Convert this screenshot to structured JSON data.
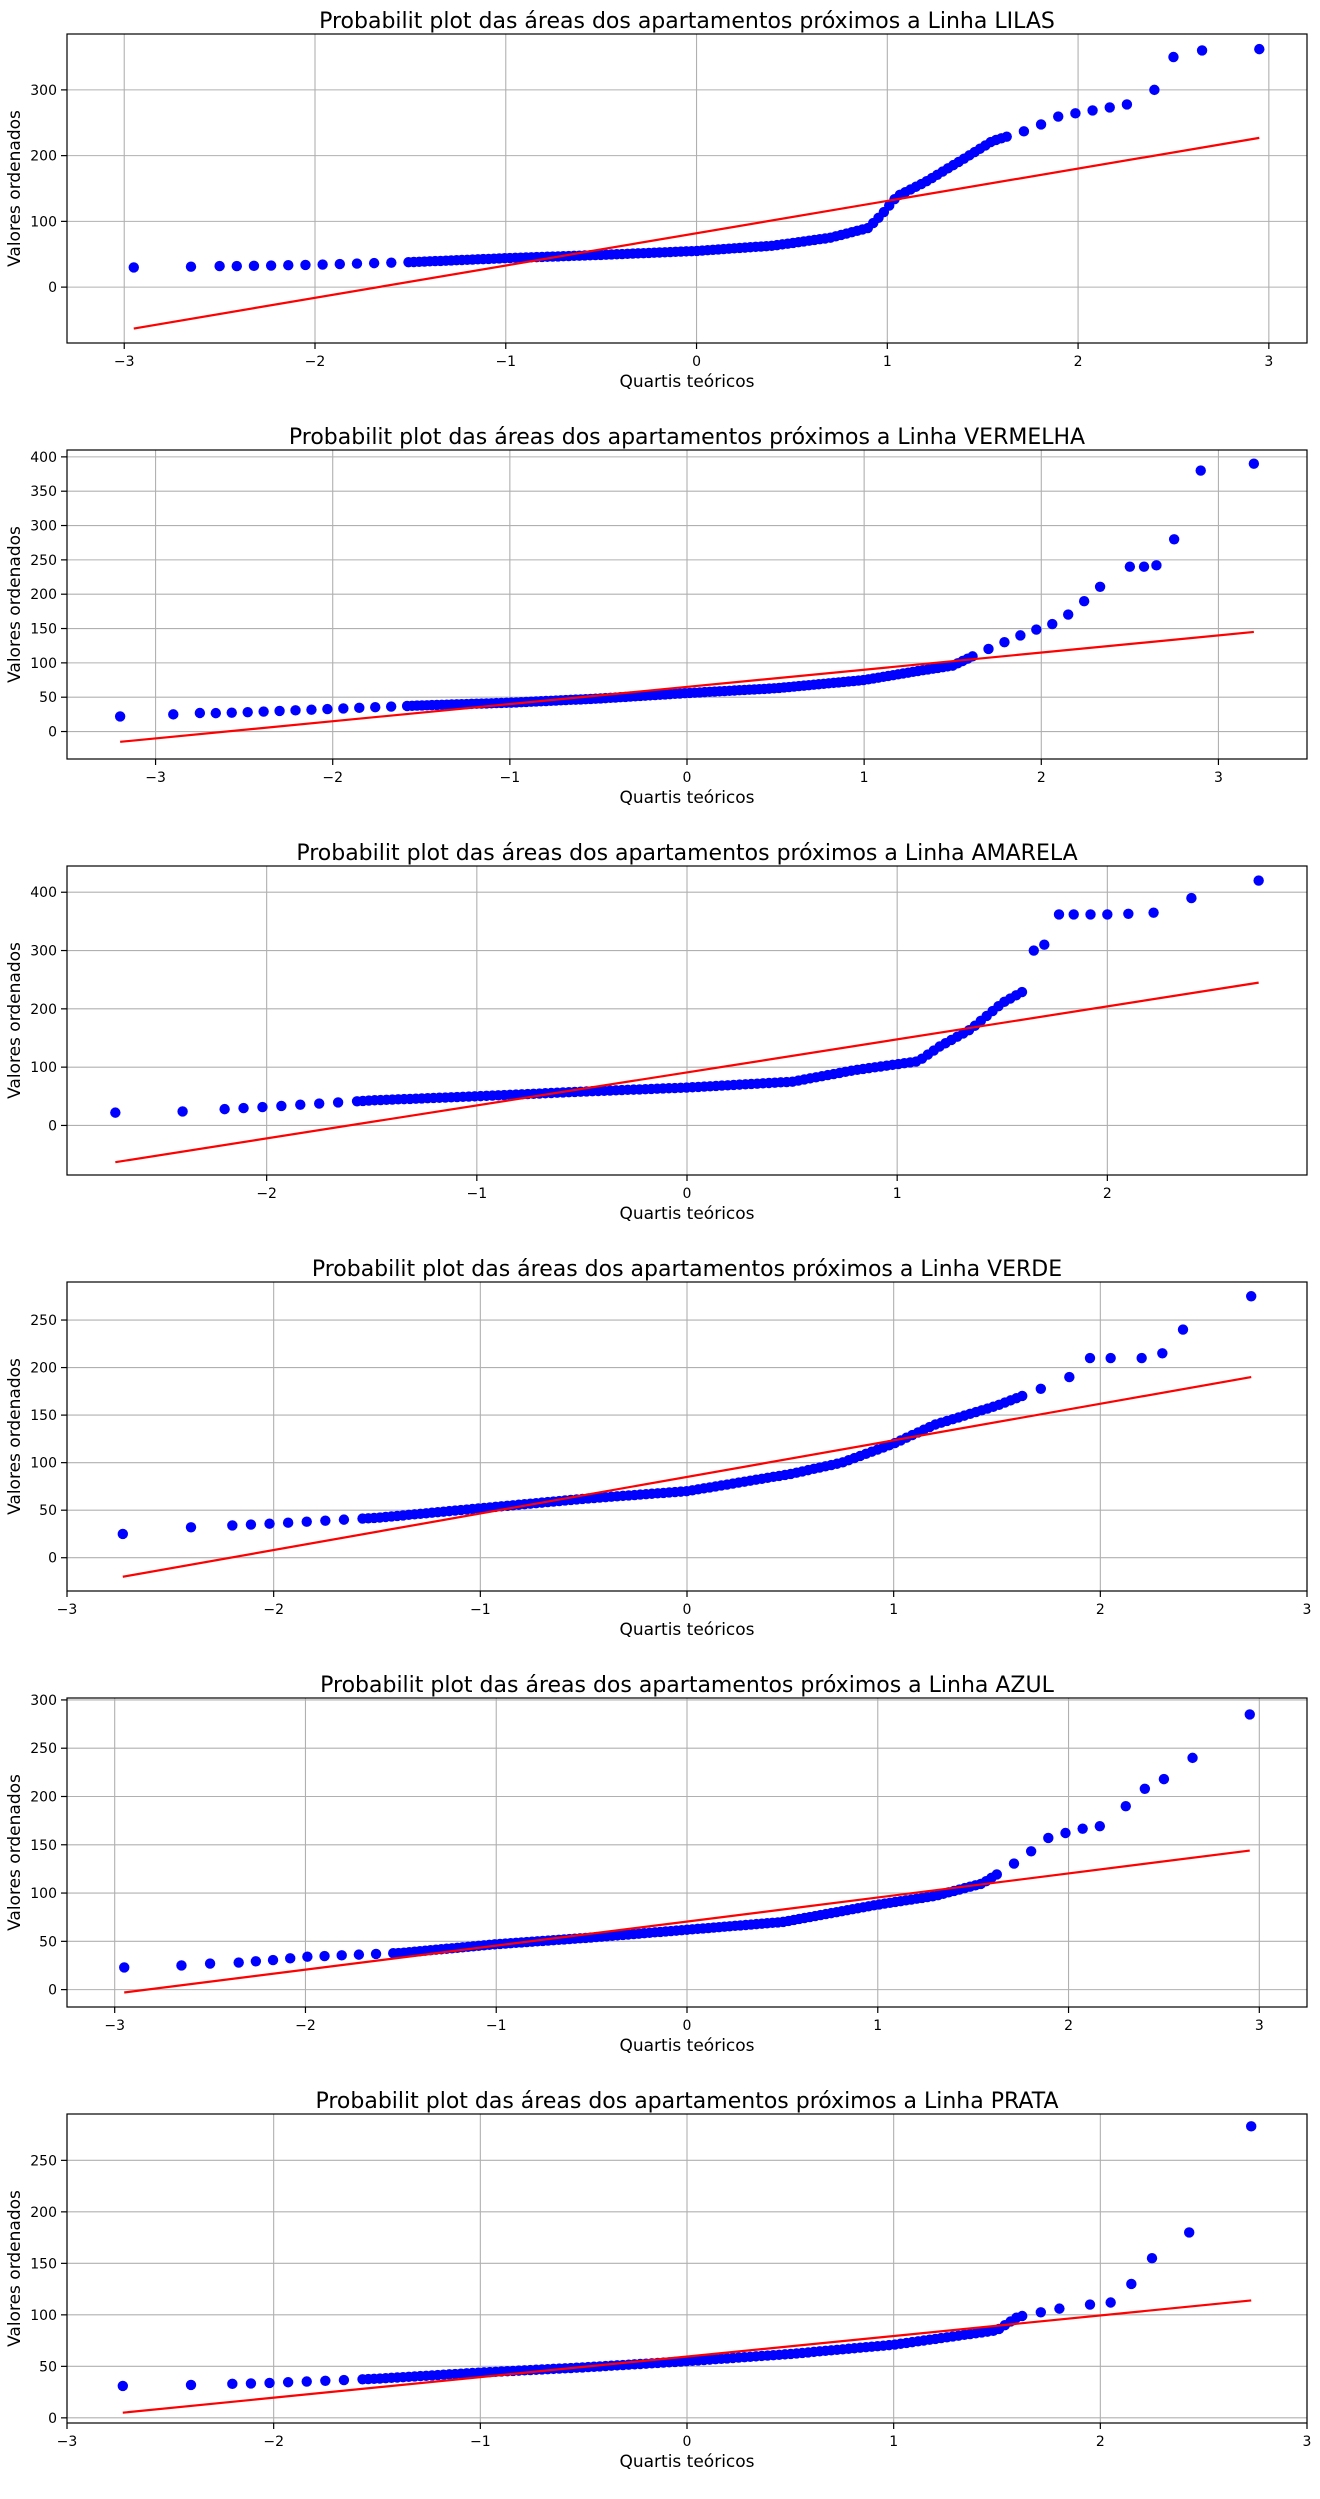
{
  "chart_data": [
    {
      "type": "scatter",
      "title": "Probabilit plot das áreas dos apartamentos próximos a Linha LILAS",
      "xlabel": "Quartis teóricos",
      "ylabel": "Valores ordenados",
      "xlim": [
        -3.3,
        3.2
      ],
      "ylim": [
        -85,
        385
      ],
      "xticks": [
        -3,
        -2,
        -1,
        0,
        1,
        2,
        3
      ],
      "yticks": [
        0,
        100,
        200,
        300
      ],
      "grid": true,
      "fit_line": {
        "x": [
          -2.95,
          2.95
        ],
        "y": [
          -63,
          227
        ]
      },
      "knots": [
        [
          -2.95,
          30
        ],
        [
          -2.65,
          31
        ],
        [
          -2.4,
          32
        ],
        [
          -2.0,
          34
        ],
        [
          -1.5,
          38
        ],
        [
          -1.0,
          44
        ],
        [
          -0.5,
          49
        ],
        [
          0.0,
          55
        ],
        [
          0.4,
          63
        ],
        [
          0.7,
          75
        ],
        [
          0.9,
          90
        ],
        [
          0.97,
          110
        ],
        [
          1.05,
          138
        ],
        [
          1.2,
          160
        ],
        [
          1.4,
          195
        ],
        [
          1.55,
          222
        ],
        [
          1.75,
          240
        ],
        [
          1.9,
          260
        ],
        [
          2.1,
          270
        ],
        [
          2.3,
          280
        ],
        [
          2.4,
          300
        ],
        [
          2.5,
          350
        ],
        [
          2.65,
          360
        ],
        [
          2.95,
          362
        ]
      ],
      "tail": [
        [
          -2.95,
          30
        ],
        [
          -2.65,
          31
        ],
        [
          -2.5,
          32
        ],
        [
          2.4,
          300
        ],
        [
          2.5,
          350
        ],
        [
          2.65,
          360
        ],
        [
          2.95,
          362
        ]
      ]
    },
    {
      "type": "scatter",
      "title": "Probabilit plot das áreas dos apartamentos próximos a Linha VERMELHA",
      "xlabel": "Quartis teóricos",
      "ylabel": "Valores ordenados",
      "xlim": [
        -3.5,
        3.5
      ],
      "ylim": [
        -40,
        410
      ],
      "xticks": [
        -3,
        -2,
        -1,
        0,
        1,
        2,
        3
      ],
      "yticks": [
        0,
        50,
        100,
        150,
        200,
        250,
        300,
        350,
        400
      ],
      "grid": true,
      "fit_line": {
        "x": [
          -3.2,
          3.2
        ],
        "y": [
          -15,
          145
        ]
      },
      "knots": [
        [
          -3.2,
          22
        ],
        [
          -2.9,
          25
        ],
        [
          -2.5,
          28
        ],
        [
          -2.0,
          33
        ],
        [
          -1.5,
          38
        ],
        [
          -1.0,
          42
        ],
        [
          -0.5,
          48
        ],
        [
          0.0,
          56
        ],
        [
          0.5,
          63
        ],
        [
          1.0,
          75
        ],
        [
          1.3,
          88
        ],
        [
          1.5,
          96
        ],
        [
          1.7,
          120
        ],
        [
          1.9,
          142
        ],
        [
          2.1,
          160
        ],
        [
          2.2,
          180
        ],
        [
          2.35,
          215
        ],
        [
          2.5,
          240
        ],
        [
          2.65,
          242
        ],
        [
          2.75,
          280
        ],
        [
          2.9,
          380
        ],
        [
          3.2,
          390
        ]
      ],
      "tail": [
        [
          -3.2,
          22
        ],
        [
          -2.9,
          25
        ],
        [
          -2.75,
          27
        ],
        [
          2.5,
          240
        ],
        [
          2.58,
          240
        ],
        [
          2.65,
          242
        ],
        [
          2.75,
          280
        ],
        [
          2.9,
          380
        ],
        [
          3.2,
          390
        ]
      ]
    },
    {
      "type": "scatter",
      "title": "Probabilit plot das áreas dos apartamentos próximos a Linha AMARELA",
      "xlabel": "Quartis teóricos",
      "ylabel": "Valores ordenados",
      "xlim": [
        -2.95,
        2.95
      ],
      "ylim": [
        -85,
        445
      ],
      "xticks": [
        -2,
        -1,
        0,
        1,
        2
      ],
      "yticks": [
        0,
        100,
        200,
        300,
        400
      ],
      "grid": true,
      "fit_line": {
        "x": [
          -2.72,
          2.72
        ],
        "y": [
          -63,
          245
        ]
      },
      "knots": [
        [
          -2.72,
          22
        ],
        [
          -2.4,
          24
        ],
        [
          -2.0,
          32
        ],
        [
          -1.5,
          43
        ],
        [
          -1.0,
          50
        ],
        [
          -0.5,
          58
        ],
        [
          0.0,
          65
        ],
        [
          0.5,
          75
        ],
        [
          0.8,
          95
        ],
        [
          1.1,
          110
        ],
        [
          1.2,
          135
        ],
        [
          1.35,
          165
        ],
        [
          1.5,
          210
        ],
        [
          1.6,
          230
        ],
        [
          1.65,
          300
        ],
        [
          1.75,
          360
        ],
        [
          2.2,
          365
        ],
        [
          2.4,
          390
        ],
        [
          2.72,
          420
        ]
      ],
      "tail": [
        [
          -2.72,
          22
        ],
        [
          -2.4,
          24
        ],
        [
          -2.2,
          28
        ],
        [
          1.65,
          300
        ],
        [
          1.7,
          310
        ],
        [
          1.77,
          362
        ],
        [
          1.84,
          362
        ],
        [
          1.92,
          362
        ],
        [
          2.0,
          362
        ],
        [
          2.1,
          363
        ],
        [
          2.22,
          365
        ],
        [
          2.4,
          390
        ],
        [
          2.72,
          420
        ]
      ]
    },
    {
      "type": "scatter",
      "title": "Probabilit plot das áreas dos apartamentos próximos a Linha VERDE",
      "xlabel": "Quartis teóricos",
      "ylabel": "Valores ordenados",
      "xlim": [
        -3.0,
        3.0
      ],
      "ylim": [
        -35,
        290
      ],
      "xticks": [
        -3,
        -2,
        -1,
        0,
        1,
        2,
        3
      ],
      "yticks": [
        0,
        50,
        100,
        150,
        200,
        250
      ],
      "grid": true,
      "fit_line": {
        "x": [
          -2.73,
          2.73
        ],
        "y": [
          -20,
          190
        ]
      },
      "knots": [
        [
          -2.73,
          25
        ],
        [
          -2.4,
          32
        ],
        [
          -2.0,
          36
        ],
        [
          -1.5,
          42
        ],
        [
          -1.0,
          52
        ],
        [
          -0.5,
          62
        ],
        [
          0.0,
          70
        ],
        [
          0.5,
          88
        ],
        [
          0.75,
          100
        ],
        [
          1.0,
          120
        ],
        [
          1.2,
          140
        ],
        [
          1.5,
          160
        ],
        [
          1.8,
          185
        ],
        [
          1.95,
          210
        ],
        [
          2.2,
          215
        ],
        [
          2.4,
          240
        ],
        [
          2.73,
          275
        ]
      ],
      "tail": [
        [
          -2.73,
          25
        ],
        [
          -2.4,
          32
        ],
        [
          -2.2,
          34
        ],
        [
          1.85,
          190
        ],
        [
          1.95,
          210
        ],
        [
          2.05,
          210
        ],
        [
          2.2,
          210
        ],
        [
          2.3,
          215
        ],
        [
          2.4,
          240
        ],
        [
          2.73,
          275
        ]
      ]
    },
    {
      "type": "scatter",
      "title": "Probabilit plot das áreas dos apartamentos próximos a Linha AZUL",
      "xlabel": "Quartis teóricos",
      "ylabel": "Valores ordenados",
      "xlim": [
        -3.25,
        3.25
      ],
      "ylim": [
        -18,
        302
      ],
      "xticks": [
        -3,
        -2,
        -1,
        0,
        1,
        2,
        3
      ],
      "yticks": [
        0,
        50,
        100,
        150,
        200,
        250,
        300
      ],
      "grid": true,
      "fit_line": {
        "x": [
          -2.95,
          2.95
        ],
        "y": [
          -3,
          144
        ]
      },
      "knots": [
        [
          -2.95,
          23
        ],
        [
          -2.65,
          25
        ],
        [
          -2.2,
          30
        ],
        [
          -2.0,
          34
        ],
        [
          -1.5,
          38
        ],
        [
          -1.0,
          47
        ],
        [
          -0.5,
          54
        ],
        [
          0.0,
          62
        ],
        [
          0.5,
          70
        ],
        [
          1.0,
          88
        ],
        [
          1.3,
          97
        ],
        [
          1.55,
          110
        ],
        [
          1.75,
          135
        ],
        [
          1.9,
          158
        ],
        [
          2.1,
          168
        ],
        [
          2.2,
          170
        ],
        [
          2.3,
          190
        ],
        [
          2.4,
          208
        ],
        [
          2.5,
          218
        ],
        [
          2.65,
          240
        ],
        [
          2.95,
          285
        ]
      ],
      "tail": [
        [
          -2.95,
          23
        ],
        [
          -2.65,
          25
        ],
        [
          -2.5,
          27
        ],
        [
          -2.35,
          28
        ],
        [
          2.3,
          190
        ],
        [
          2.4,
          208
        ],
        [
          2.5,
          218
        ],
        [
          2.65,
          240
        ],
        [
          2.95,
          285
        ]
      ]
    },
    {
      "type": "scatter",
      "title": "Probabilit plot das áreas dos apartamentos próximos a Linha PRATA",
      "xlabel": "Quartis teóricos",
      "ylabel": "Valores ordenados",
      "xlim": [
        -3.0,
        3.0
      ],
      "ylim": [
        -5,
        295
      ],
      "xticks": [
        -3,
        -2,
        -1,
        0,
        1,
        2,
        3
      ],
      "yticks": [
        0,
        50,
        100,
        150,
        200,
        250
      ],
      "grid": true,
      "fit_line": {
        "x": [
          -2.73,
          2.73
        ],
        "y": [
          5,
          114
        ]
      },
      "knots": [
        [
          -2.73,
          31
        ],
        [
          -2.4,
          32
        ],
        [
          -2.0,
          34
        ],
        [
          -1.5,
          38
        ],
        [
          -1.0,
          44
        ],
        [
          -0.5,
          49
        ],
        [
          0.0,
          55
        ],
        [
          0.5,
          62
        ],
        [
          1.0,
          71
        ],
        [
          1.5,
          85
        ],
        [
          1.6,
          98
        ],
        [
          1.8,
          106
        ],
        [
          2.0,
          110
        ],
        [
          2.05,
          112
        ],
        [
          2.15,
          130
        ],
        [
          2.25,
          155
        ],
        [
          2.43,
          180
        ],
        [
          2.73,
          283
        ]
      ],
      "tail": [
        [
          -2.73,
          31
        ],
        [
          -2.4,
          32
        ],
        [
          -2.2,
          33
        ],
        [
          1.95,
          110
        ],
        [
          2.05,
          112
        ],
        [
          2.15,
          130
        ],
        [
          2.25,
          155
        ],
        [
          2.43,
          180
        ],
        [
          2.73,
          283
        ]
      ]
    }
  ]
}
